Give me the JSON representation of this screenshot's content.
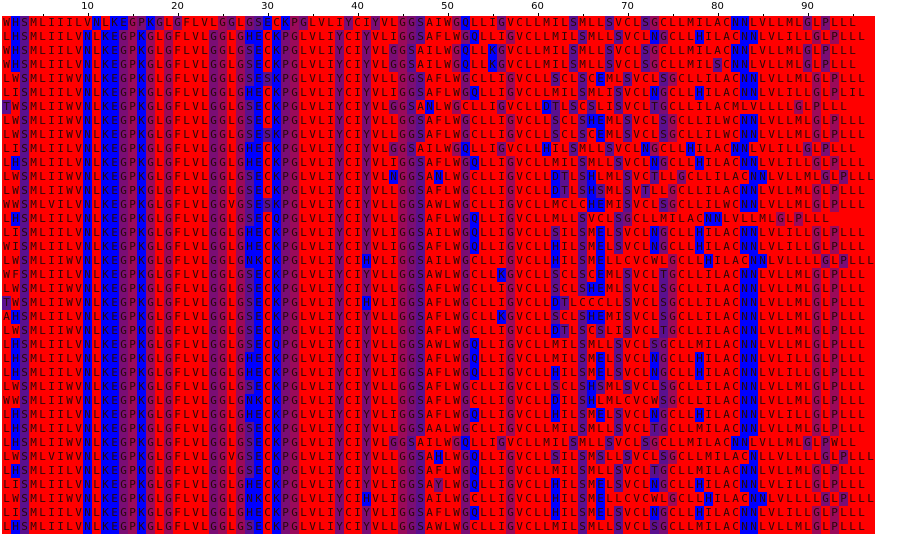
{
  "ruler": {
    "labels": [
      "10",
      "20",
      "30",
      "40",
      "50",
      "60",
      "70",
      "80",
      "90"
    ]
  },
  "colors": {
    "hydrophobic": "#ff0000",
    "polar": "#0000ff",
    "mid_a": "#9b0a5a",
    "mid_b": "#5a108f",
    "mid_c": "#7a0d75",
    "text": "#2a0808"
  },
  "sequences": [
    "WHSMLIIILVNLKEGPKGLGFLVLGGLGSECKPGLVLIYCIYVLGGSAIWGQLLIGVCLLMILSMLLSVCLSGCLLMILACNNLVLLMLGLPLLL",
    "LHSMLIILVNLKEGPKGLGFLVLGGLGHECKPGLVLIYCIYVLIGGSAFLWGQLLIGVCLLMILSMLLSVCLNGCLLHILACNNLVLILLGLPLLL",
    "WHSMLIILVNLKEGPKGLGFLVLGGLGSECKPGLVLIYCIYVLGGSAILWGQLLKGVCLLMILSMLLSVCLSGCLLMILACNNLVLLMLGLPLLL",
    "WHSMLIILVNLKEGPKGLGFLVLGGLGSECKPGLVLIYCIYVLGGSAILWGQLLKGVCLLMILSMLLSVCLSGCLLMILSCNNLVLLMLGLPLLL",
    "LWSMLIIWVNLKEGPKGLGFLVLGGLGSESKPGLVLIYCIYVLLGGSAFLWGCLLIGVCLLSCLSCEMLSVCLSGCLLILACNNLVLLMLGLPLLL",
    "LISMLIILVNLKEGPKGLGFLVLGGLGHECKPGLVLIYCIYVLIGGSAFLWGQLLIGVCLLMILSMLISVCLNGCLLHILACNNLVLILLGLPLIL",
    "TWSMLIIWVNLKEGPKGLGFLVLGGLGSECKPGLVLIYCIYVLGGSANLWGCLLIGVCLLDTLSCSLISVCLTGCLLILACMLVLLLLGLPLLL",
    "LWSMLIIWVNLKEGPKGLGFLVLGGLGSECKPGLVLIYCIYVLLGGSAFLWGCLLIGVCLLSCLSHEMLSVCLSGCLLILWCNNLVLLMLGLPLLL",
    "LWSMLIIWVNLKEGPKGLGFLVLGGLGSESKPGLVLIYCIYVLLGGSAFLWGCLLIGVCLLSCLSCEMLSVCLSGCLLILWCNNLVLLMLGLPLLL",
    "LISMLIILVNLKEGPKGLGFLVLGGLGHECKPGLVLIYCIYVLGGSAILWGQLLIGVCLLHILSMLLSVCLNGCLLHILACNNLVLILLGLPLLL",
    "LHSMLIILVNLKEGPKGLGFLVLGGLGHECKPGLVLIYCIYVLIGGSAFLWGQLLIGVCLLMILSMLLSVCLNGCLLHILACNNLVLILLGLPLLL",
    "LWSMLIIWVNLKEGPKGLGFLVLGGLGSECKPGLVLIYCIYVLNGGSANLWGCLLIGVCLLDTLSHLMLSVCTLLGCLLILACNNLVLLMLGLPLLL",
    "LWSMLIIWVNLKEGPKGLGFLVLGGLGSECKPGLVLIYCIYVLLGGSAFLWGCLLIGVCLLDTLSHSMLSVTLLGCLLILACNNLVLLMLGLPLLL",
    "WWSMLVILVNLKEGPKGLGFLVLGGVGSESKPGLVLIYCIYVLLGGSAWLWGCLLIGVCLLMCLCHEMISVCLSGCLLILWCNNLVLLMLGLPLLL",
    "LHSMLIILVNLKEGPKGLGFLVLGGLGSECQPGLVLIYCIYVLLGGSAFLWGQLLIGVCLLMLLSVCLSGCLLMILACNNLVLLMLGLPLLL",
    "LISMLIILVNLKEGPKGLGFLVLGGLGHECKPGLVLIYCIYVLIGGSAILWGQLLIGVCLLSILSMELSVCLNGCLLHILACNNLVLILLGLPLLL",
    "WISMLIILVNLKEGPKGLGFLVLGGLGHECKPGLVLIYCIYVLIGGSAFLWGQLLIGVCLLHILSMELSVCLNGCLLHILACNNLVLILLGLPLLL",
    "LWSMLIIWVNLKEGPKGLGFLVLGGLGNKCKPGLVLIYCIHVLIGGSAILWGCLLIGVCLLHILSMELLCVCWLGCLLHILACNNLVLLLLGLPLLL",
    "WFSMLIILVNLKEGPKGLGFLVLGGLGSECKPGLVLIYCIYVLLGGSAWLWGCLLKGVCLLSCLSCEMLSVCLTGCLLILACNNLVLLMLGLPLLL",
    "LWSMLIIWVNLKEGPKGLGFLVLGGLGSECKPGLVLIYCIYVLLGGSAFLWGCLLIGVCLLSCLSHEMLSVCLSGCLLILACNNLVLLMLGLPLLL",
    "TWSMLIIWVNLKEGPKGLGFLVLGGLGSECKPGLVLIYCIHVLIGGSAFLWGCLLIGVCLLDTLCCCLLSVCLSGCLLILACNNLVLLMLGLPLLL",
    "AHSMLIILVNLKEGPKGLGFLVLGGLGSECKPGLVLIYCIYVLLGGSAFLWGCLLKGVCLLSCLSHEMISVCLSGCLLILACNNLVLLMLGLPLLL",
    "LWSMLIIWVNLKEGPKGLGFLVLGGLGSECKPGLVLIYCIYVLLGGSAFLWGCLLIGVCLLDTLSCSLISVCLTGCLLILACNNLVLLMLGLPLLL",
    "LHSMLIILVNLKEGPKGLGFLVLGGLGSECQPGLVLIYCIYVLLGGSAWLWGQLLIGVCLLMILSMLLSVCLSGCLLMILACNNLVLLMLGLPLLL",
    "LHSMLIILVNLKEGPKGLGFLVLGGLGHECKPGLVLIYCIYVLIGGSAFLWGQLLIGVCLLMILSMELSVCLNGCLLHILACNNLVLILLGLPLLL",
    "LHSMLIILVNLKEGPKGLGFLVLGGLGHECKPGLVLIYCIYVLIGGSAFLWGQLLIGVCLLHILSMELSVCLNGCLLHILACNNLVLILLGLPLLL",
    "LWSMLIIWVNLKEGPKGLGFLVLGGLGSECKPGLVLIYCIYVLLGGSAFLWGCLLIGVCLLSCLSHSMLSVCLSGCLLILACNNLVLLMLGLPLLL",
    "WWSMLIIWVNLKEGPKGLGFLVLGGLGNKCKPGLVLIYCIYVLLGGSAFLWGCLLIGVCLLDILSHLMLCVCWSGCLLILACNNLVLLMLGLPLLL",
    "LHSMLIILVNLKEGPKGLGFLVLGGLGHECKPGLVLIYCIYVLIGGSAFLWGQLLIGVCLLHILSMELSVCLNGCLLHILACNNLVLILLGLPLLL",
    "LHSMLIILVNLKEGPKGLGFLVLGGLGSECKPGLVLIYCIYVLLGGSAALWGCLLIGVCLLMILSMLLSVCLTGCLLMILACNNLVLLMLGLPLLL",
    "LHSMLIIWVNLKEGPKGLGFLVLGGLGSECKPGLVLIYCIYVLGGSAILWGQLLIGVCLLMILSMLLSVCLSGCLLMILACNNLVLLMLGLPWLL",
    "LWSMLVIWVNLKEGPKGLGFLVLGGVGSECKPGLVLIYCIYVLLGGSAHLWGQLLIGVCLLSILSMSLLSVCLSGCLLMILACNLLVLLLLGLPLLL",
    "LHSMLIILVNLKEGPKGLGFLVLGGLGSECQPGLVLIYCIYVLLGGSAFLWGQLLIGVCLLMILSMLLSVCLTGCLLMILACNNLVLLMLGLPLLL",
    "LISMLIILVNLKEGPKGLGFLVLGGLGHECKPGLVLIYCIYVLIGGSAYLWGQLLIGVCLLHILSMELSVCLNGCLLHILACNNLVLILLGLPLLL",
    "LWSMLIIWVNLKEGPKGLGFLVLGGLGNKCKPGLVLIYCIHVLIGGSAILWGCLLIGVCLLHILSMELLCVCWLGCLLHILACNNLVLLLLGLPLLL",
    "LISMLIILVNLKEGPKGLGFLVLGGLGHECKPGLVLIYCIYVLIGGSAFLWGQLLIGVCLLHILSMELSVCLNGCLLHILACNNLVLILLGLPLLL",
    "LHSMLIILVNLKEGPKGLGFLVLGGLGSECKPGLVLIYCIYVLLGGSAWLWGCLLIGVCLLMILSMLLSVCLSGCLLMILACNNLVLLMLGLPLLL"
  ]
}
